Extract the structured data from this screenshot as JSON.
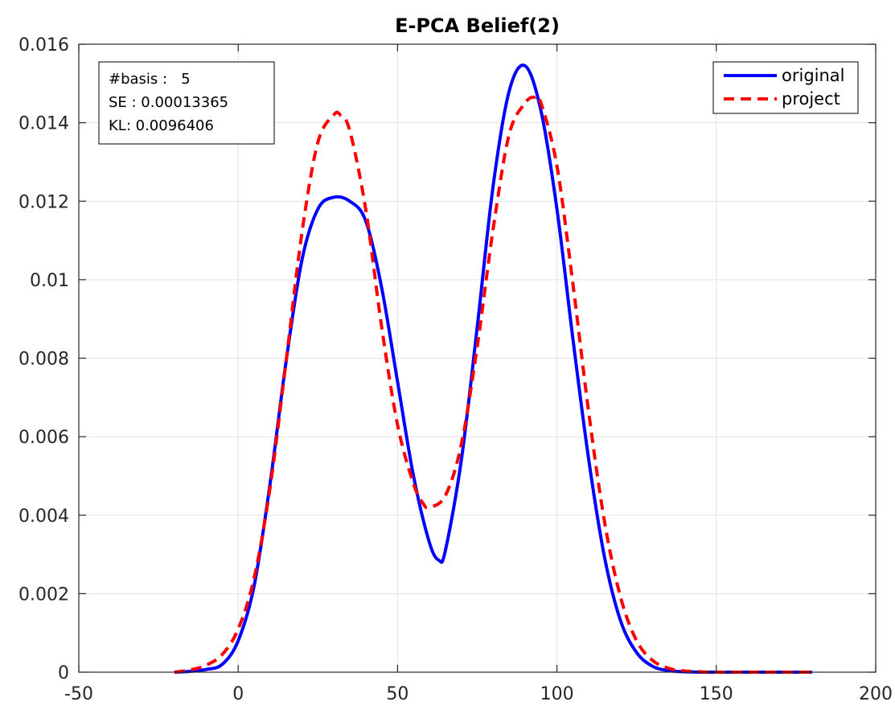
{
  "chart_data": {
    "type": "line",
    "title": "E-PCA Belief(2)",
    "xlabel": "",
    "ylabel": "",
    "xlim": [
      -50,
      200
    ],
    "ylim": [
      0,
      0.016
    ],
    "xticks": [
      -50,
      0,
      50,
      100,
      150,
      200
    ],
    "xtick_labels": [
      "-50",
      "0",
      "50",
      "100",
      "150",
      "200"
    ],
    "yticks": [
      0,
      0.002,
      0.004,
      0.006,
      0.008,
      0.01,
      0.012,
      0.014,
      0.016
    ],
    "ytick_labels": [
      "0",
      "0.002",
      "0.004",
      "0.006",
      "0.008",
      "0.01",
      "0.012",
      "0.014",
      "0.016"
    ],
    "grid": true,
    "legend_position": "top-right",
    "annotation": {
      "lines": [
        "#basis :   5",
        "SE : 0.00013365",
        "KL: 0.0096406"
      ]
    },
    "series": [
      {
        "name": "original",
        "color": "#0000ff",
        "style": "solid",
        "x": [
          -20,
          -15,
          -10,
          -5,
          0,
          5,
          10,
          15,
          20,
          25,
          30,
          35,
          40,
          45,
          50,
          55,
          60,
          63,
          65,
          70,
          75,
          80,
          85,
          90,
          95,
          100,
          105,
          110,
          115,
          120,
          125,
          130,
          135,
          140,
          145,
          150,
          160,
          170,
          180
        ],
        "y": [
          0,
          2e-05,
          7e-05,
          0.0002,
          0.0008,
          0.0022,
          0.0048,
          0.0079,
          0.0105,
          0.0118,
          0.0121,
          0.012,
          0.0115,
          0.0098,
          0.0074,
          0.005,
          0.0033,
          0.00285,
          0.0031,
          0.0054,
          0.0088,
          0.0124,
          0.0148,
          0.01545,
          0.0143,
          0.0118,
          0.0085,
          0.0054,
          0.0029,
          0.0013,
          0.0005,
          0.00015,
          4e-05,
          1e-05,
          0,
          0,
          0,
          0,
          0
        ]
      },
      {
        "name": "project",
        "color": "#ff0000",
        "style": "dashed",
        "x": [
          -20,
          -15,
          -10,
          -5,
          0,
          5,
          10,
          15,
          20,
          25,
          30,
          32,
          35,
          40,
          45,
          50,
          55,
          58,
          60,
          65,
          70,
          75,
          80,
          85,
          90,
          93,
          95,
          100,
          105,
          110,
          115,
          120,
          125,
          130,
          135,
          140,
          145,
          150,
          160,
          170,
          180
        ],
        "y": [
          0,
          6e-05,
          0.00018,
          0.00045,
          0.0011,
          0.0024,
          0.0047,
          0.0079,
          0.0112,
          0.0135,
          0.0142,
          0.0142,
          0.0138,
          0.0118,
          0.0088,
          0.0063,
          0.0048,
          0.0043,
          0.0042,
          0.0045,
          0.0058,
          0.0083,
          0.0113,
          0.0137,
          0.0145,
          0.01465,
          0.0145,
          0.0129,
          0.0099,
          0.0066,
          0.0038,
          0.0019,
          0.0008,
          0.0003,
          0.0001,
          3e-05,
          1e-05,
          0,
          0,
          0,
          0
        ]
      }
    ]
  }
}
